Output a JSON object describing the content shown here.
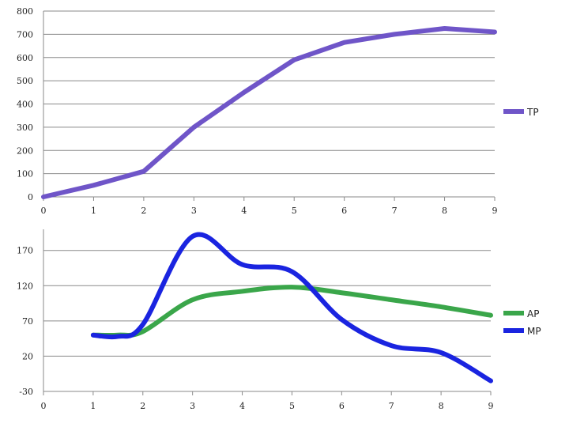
{
  "chart_data": [
    {
      "type": "line",
      "x": [
        0,
        1,
        2,
        3,
        4,
        5,
        6,
        7,
        8,
        9
      ],
      "xticks": [
        "0",
        "1",
        "2",
        "3",
        "4",
        "5",
        "6",
        "7",
        "8",
        "9"
      ],
      "ylim": [
        0,
        800
      ],
      "yticks": [
        "0",
        "100",
        "200",
        "300",
        "400",
        "500",
        "600",
        "700",
        "800"
      ],
      "grid": true,
      "legend_position": "right",
      "series": [
        {
          "name": "TP",
          "color": "#6f55c8",
          "values": [
            0,
            50,
            110,
            300,
            450,
            590,
            665,
            700,
            725,
            710
          ]
        }
      ]
    },
    {
      "type": "line",
      "x": [
        0,
        1,
        2,
        3,
        4,
        5,
        6,
        7,
        8,
        9
      ],
      "xticks": [
        "0",
        "1",
        "2",
        "3",
        "4",
        "5",
        "6",
        "7",
        "8",
        "9"
      ],
      "ylim": [
        -30,
        200
      ],
      "yticks": [
        "-30",
        "20",
        "70",
        "120",
        "170"
      ],
      "grid": true,
      "legend_position": "right",
      "series": [
        {
          "name": "AP",
          "color": "#3aa64a",
          "x": [
            1,
            1.5,
            2,
            3,
            4,
            5,
            6,
            7,
            8,
            9
          ],
          "values": [
            50,
            50,
            55,
            100,
            112,
            118,
            110,
            100,
            90,
            78
          ]
        },
        {
          "name": "MP",
          "color": "#1a24e0",
          "x": [
            1,
            1.5,
            2,
            3,
            4,
            5,
            6,
            7,
            8,
            9
          ],
          "values": [
            50,
            48,
            65,
            190,
            150,
            140,
            72,
            35,
            25,
            -15
          ]
        }
      ]
    }
  ]
}
